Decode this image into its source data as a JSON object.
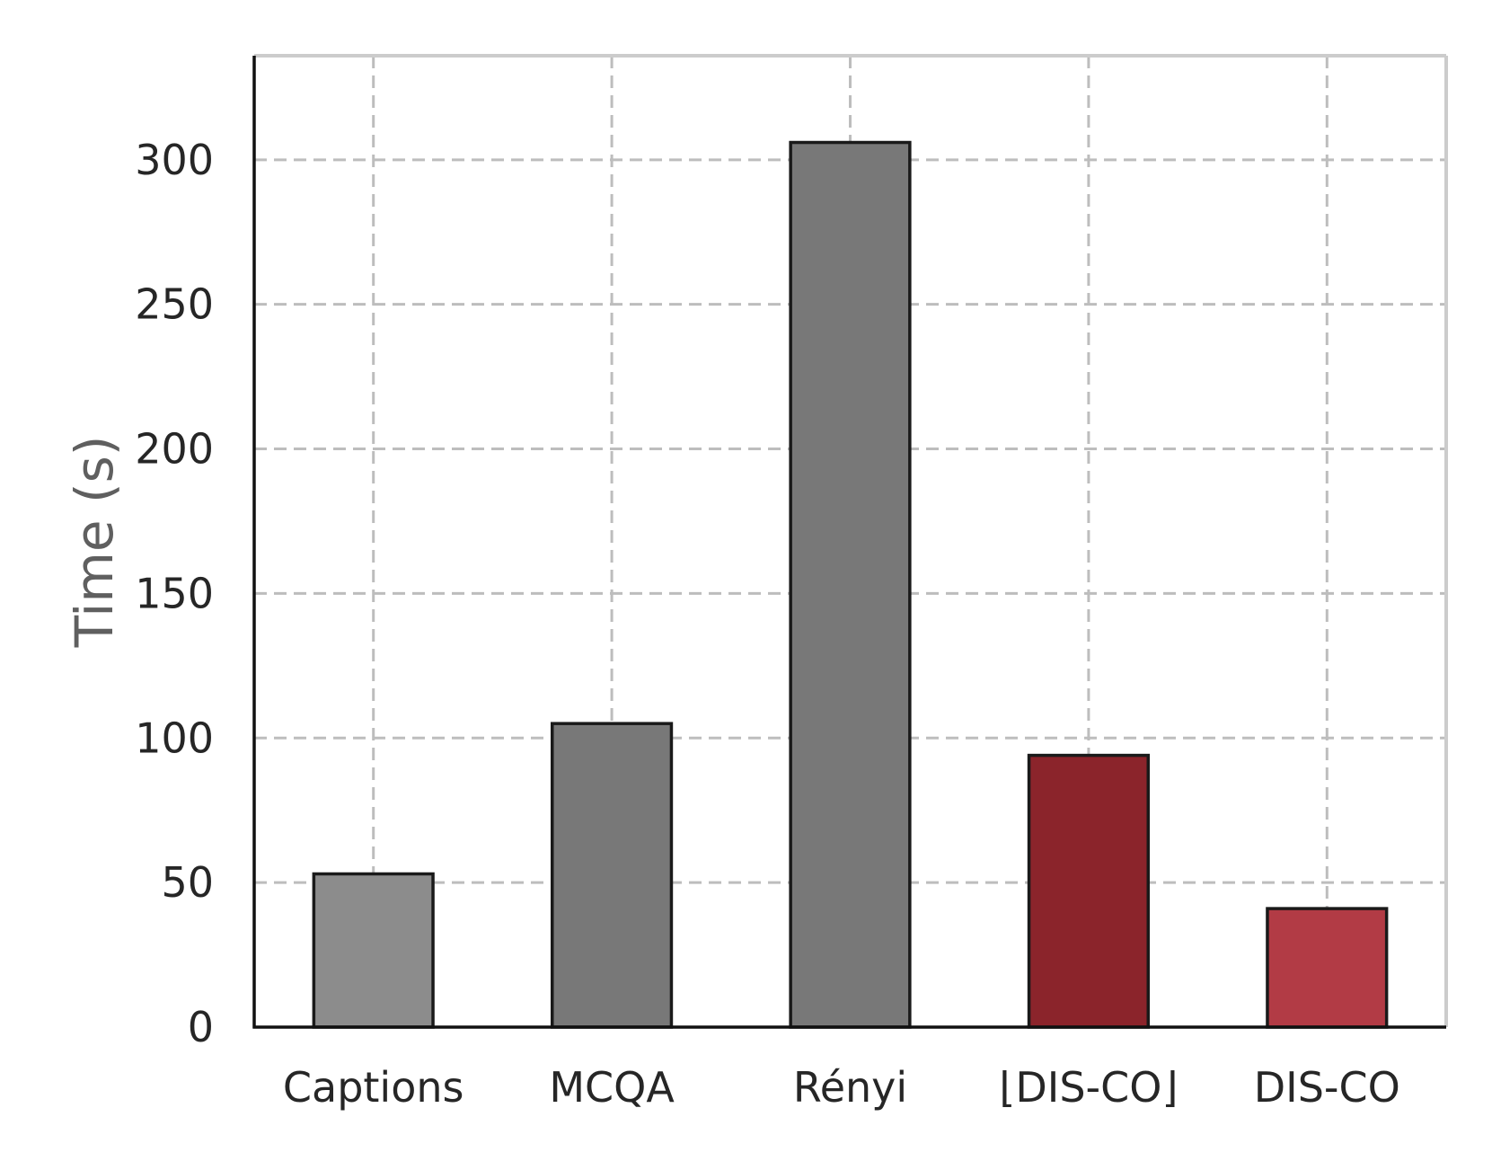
{
  "chart_data": {
    "type": "bar",
    "categories": [
      "Captions",
      "MCQA",
      "Rényi",
      "⌊DIS-CO⌋",
      "DIS-CO"
    ],
    "values": [
      53,
      105,
      306,
      94,
      41
    ],
    "bar_colors": [
      "#8c8c8c",
      "#787878",
      "#787878",
      "#8b242b",
      "#b23b45"
    ],
    "bar_edge_color": "#1a1a1a",
    "title": "",
    "xlabel": "",
    "ylabel": "Time (s)",
    "ylim": [
      0,
      336
    ],
    "yticks": [
      0,
      50,
      100,
      150,
      200,
      250,
      300
    ],
    "grid": true,
    "grid_style": "dashed"
  }
}
